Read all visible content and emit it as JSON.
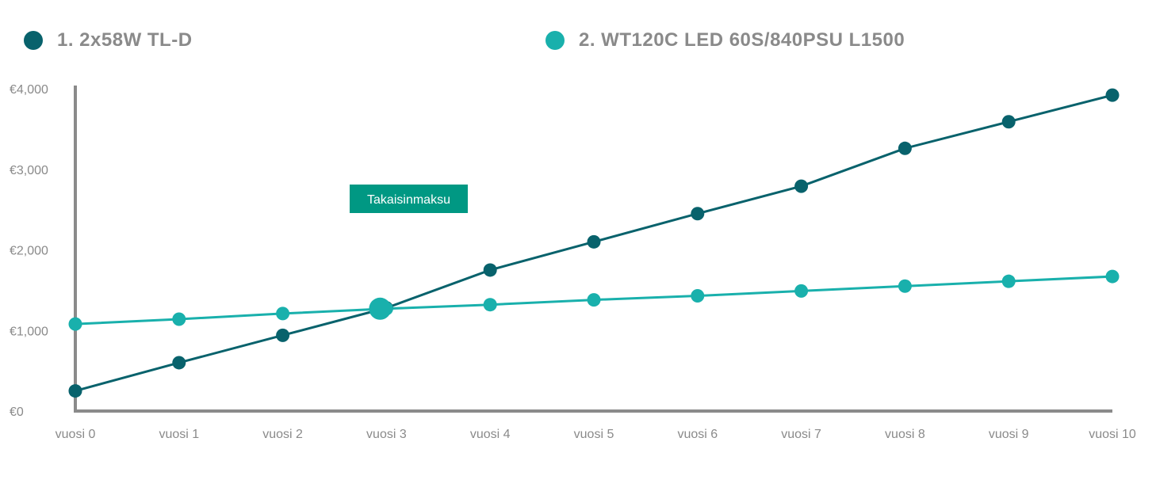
{
  "colors": {
    "series1": "#08626c",
    "series2": "#19b0ac",
    "axis": "#8a8a8a",
    "annotation_bg": "#009883"
  },
  "chart_data": {
    "type": "line",
    "categories": [
      "vuosi 0",
      "vuosi 1",
      "vuosi 2",
      "vuosi 3",
      "vuosi 4",
      "vuosi 5",
      "vuosi 6",
      "vuosi 7",
      "vuosi 8",
      "vuosi 9",
      "vuosi 10"
    ],
    "series": [
      {
        "name": "1. 2x58W TL-D",
        "values": [
          250,
          600,
          940,
          1280,
          1750,
          2100,
          2450,
          2790,
          3260,
          3590,
          3920
        ]
      },
      {
        "name": "2. WT120C LED 60S/840PSU L1500",
        "values": [
          1080,
          1140,
          1210,
          1270,
          1320,
          1380,
          1430,
          1490,
          1550,
          1610,
          1670
        ]
      }
    ],
    "yticks": [
      0,
      1000,
      2000,
      3000,
      4000
    ],
    "ytick_labels": [
      "€0",
      "€1,000",
      "€2,000",
      "€3,000",
      "€4,000"
    ],
    "ylim": [
      0,
      4120
    ],
    "grid": false,
    "legend_position": "top",
    "annotation": {
      "text": "Takaisinmaksu",
      "category": "vuosi 3",
      "value": 1270
    }
  }
}
